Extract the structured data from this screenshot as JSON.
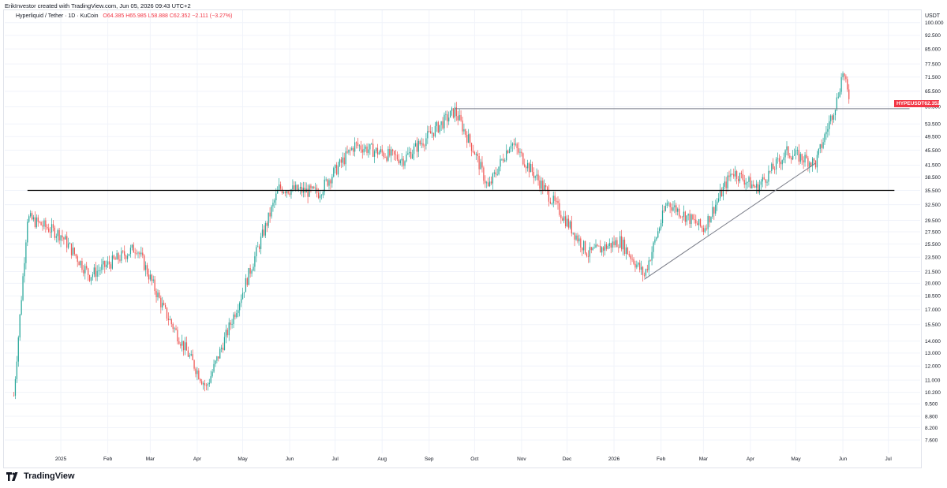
{
  "caption": "ErikInvestor created with TradingView.com, Jun 05, 2026 09:43 UTC+2",
  "symbol": {
    "name": "Hyperliquid / Tether · 1D · KuCoin",
    "open": "O64.385",
    "high": "H65.985",
    "low": "L58.888",
    "close": "C62.352",
    "change": "−2.111 (−3.27%)"
  },
  "axis_unit": "USDT",
  "price_badge": {
    "ticker": "HYPEUSDT",
    "price": "62.352",
    "color": "#f23645"
  },
  "brand": {
    "name": "TradingView",
    "logo_icon": "tradingview-logo-icon"
  },
  "colors": {
    "up": "#26a69a",
    "down": "#ef5350",
    "badge": "#f23645",
    "level_line": "#000000",
    "trend_line": "#787b86"
  },
  "chart_data": {
    "type": "candlestick",
    "y_scale": "log",
    "ylim": [
      7.0,
      108.0
    ],
    "y_ticks": [
      "100.000",
      "92.500",
      "85.000",
      "77.500",
      "71.500",
      "65.500",
      "59.500",
      "53.500",
      "49.500",
      "45.500",
      "41.500",
      "38.500",
      "35.500",
      "32.500",
      "29.500",
      "27.500",
      "25.500",
      "23.500",
      "21.500",
      "20.000",
      "18.500",
      "17.000",
      "15.500",
      "14.000",
      "13.000",
      "12.000",
      "11.000",
      "10.200",
      "9.500",
      "8.800",
      "8.200",
      "7.600"
    ],
    "x_ticks": [
      "2025",
      "Feb",
      "Mar",
      "Apr",
      "May",
      "Jun",
      "Jul",
      "Aug",
      "Sep",
      "Oct",
      "Nov",
      "Dec",
      "2026",
      "Feb",
      "Mar",
      "Apr",
      "May",
      "Jun",
      "Jul"
    ],
    "horizontal_levels": [
      35.5,
      58.8
    ],
    "trendline": {
      "from": [
        20.5,
        "2026-01-21"
      ],
      "to": [
        42,
        "2026-05-14"
      ]
    },
    "key_points": [
      {
        "date": "2024-12-01",
        "close": 10
      },
      {
        "date": "2024-12-10",
        "close": 30
      },
      {
        "date": "2025-01-01",
        "close": 27
      },
      {
        "date": "2025-01-20",
        "close": 21
      },
      {
        "date": "2025-02-20",
        "close": 25
      },
      {
        "date": "2025-03-10",
        "close": 17
      },
      {
        "date": "2025-04-07",
        "close": 10.5
      },
      {
        "date": "2025-05-01",
        "close": 19
      },
      {
        "date": "2025-05-25",
        "close": 36
      },
      {
        "date": "2025-06-20",
        "close": 35
      },
      {
        "date": "2025-07-14",
        "close": 47
      },
      {
        "date": "2025-08-15",
        "close": 43
      },
      {
        "date": "2025-09-18",
        "close": 58
      },
      {
        "date": "2025-10-01",
        "close": 45
      },
      {
        "date": "2025-10-10",
        "close": 36
      },
      {
        "date": "2025-10-25",
        "close": 48
      },
      {
        "date": "2025-11-20",
        "close": 34
      },
      {
        "date": "2025-12-15",
        "close": 24
      },
      {
        "date": "2026-01-05",
        "close": 26
      },
      {
        "date": "2026-01-21",
        "close": 21
      },
      {
        "date": "2026-02-05",
        "close": 33
      },
      {
        "date": "2026-03-01",
        "close": 28
      },
      {
        "date": "2026-03-20",
        "close": 40
      },
      {
        "date": "2026-04-05",
        "close": 36
      },
      {
        "date": "2026-04-25",
        "close": 45
      },
      {
        "date": "2026-05-14",
        "close": 42
      },
      {
        "date": "2026-05-28",
        "close": 62
      },
      {
        "date": "2026-06-01",
        "close": 74
      },
      {
        "date": "2026-06-05",
        "close": 62.352
      }
    ]
  }
}
